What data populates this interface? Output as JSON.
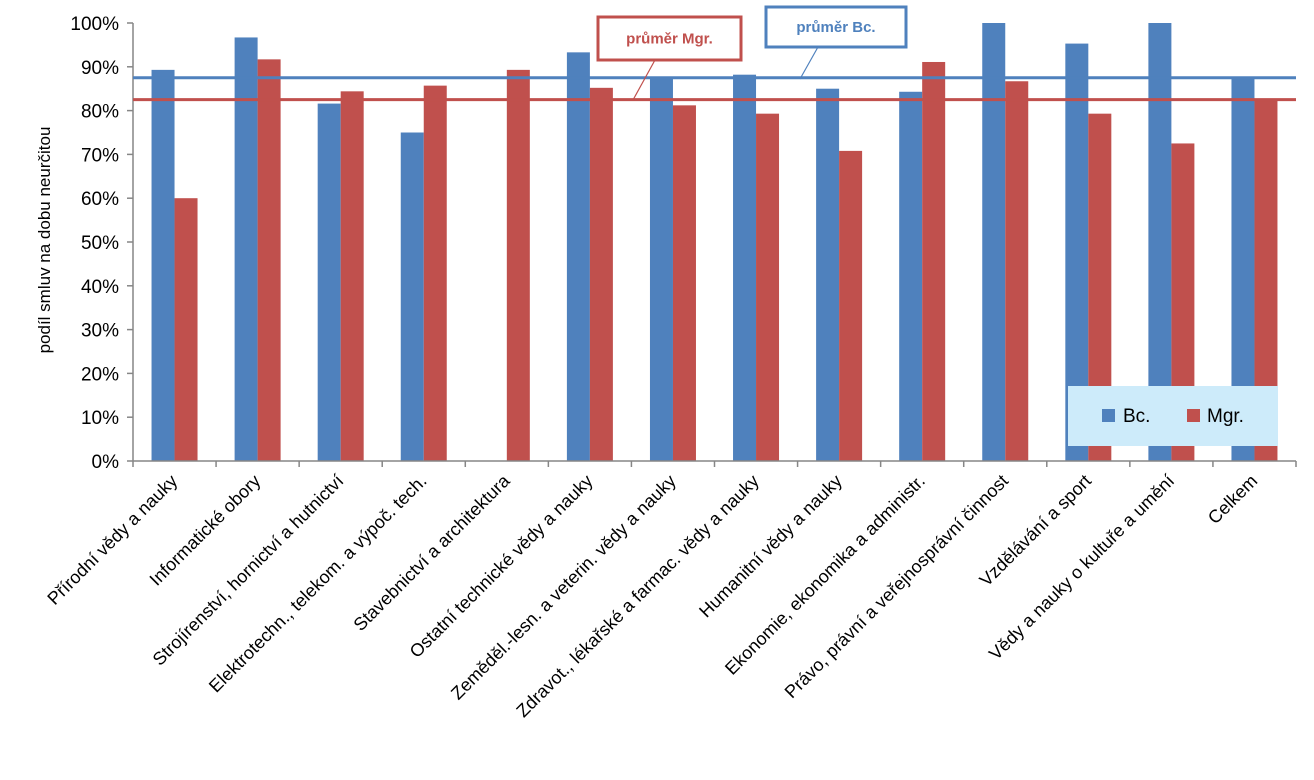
{
  "chart_data": {
    "type": "bar",
    "ylabel": "podíl smluv na dobu neurčitou",
    "ylim": [
      0,
      100
    ],
    "yticks": [
      "0%",
      "10%",
      "20%",
      "30%",
      "40%",
      "50%",
      "60%",
      "70%",
      "80%",
      "90%",
      "100%"
    ],
    "ytick_values": [
      0,
      10,
      20,
      30,
      40,
      50,
      60,
      70,
      80,
      90,
      100
    ],
    "categories": [
      "Přírodní vědy a nauky",
      "Informatické obory",
      "Strojírenství, hornictví a hutnictví",
      "Elektrotechn., telekom. a výpoč. tech.",
      "Stavebnictví a architektura",
      "Ostatní technické vědy a nauky",
      "Zeměděl.-lesn. a veterin. vědy a nauky",
      "Zdravot., lékařské a farmac. vědy a nauky",
      "Humanitní vědy a nauky",
      "Ekonomie, ekonomika a administr.",
      "Právo, právní a veřejnosprávní činnost",
      "Vzdělávání a sport",
      "Vědy a nauky o kultuře a umění",
      "Celkem"
    ],
    "series": [
      {
        "name": "Bc.",
        "color": "#4F81BD",
        "values": [
          89.3,
          96.7,
          81.6,
          75.0,
          null,
          93.3,
          87.5,
          88.2,
          85.0,
          84.3,
          100.0,
          95.3,
          100.0,
          87.5
        ]
      },
      {
        "name": "Mgr.",
        "color": "#C0504D",
        "values": [
          60.0,
          91.7,
          84.4,
          85.7,
          89.3,
          85.2,
          81.2,
          79.3,
          70.8,
          91.1,
          86.7,
          79.3,
          72.5,
          82.5
        ]
      }
    ],
    "reference_lines": [
      {
        "label": "průměr Bc.",
        "value": 87.5,
        "color": "#4F81BD"
      },
      {
        "label": "průměr Mgr.",
        "value": 82.5,
        "color": "#C0504D"
      }
    ],
    "legend": {
      "position": "bottom-right",
      "background": "#CDEBFA"
    },
    "grid": false
  }
}
